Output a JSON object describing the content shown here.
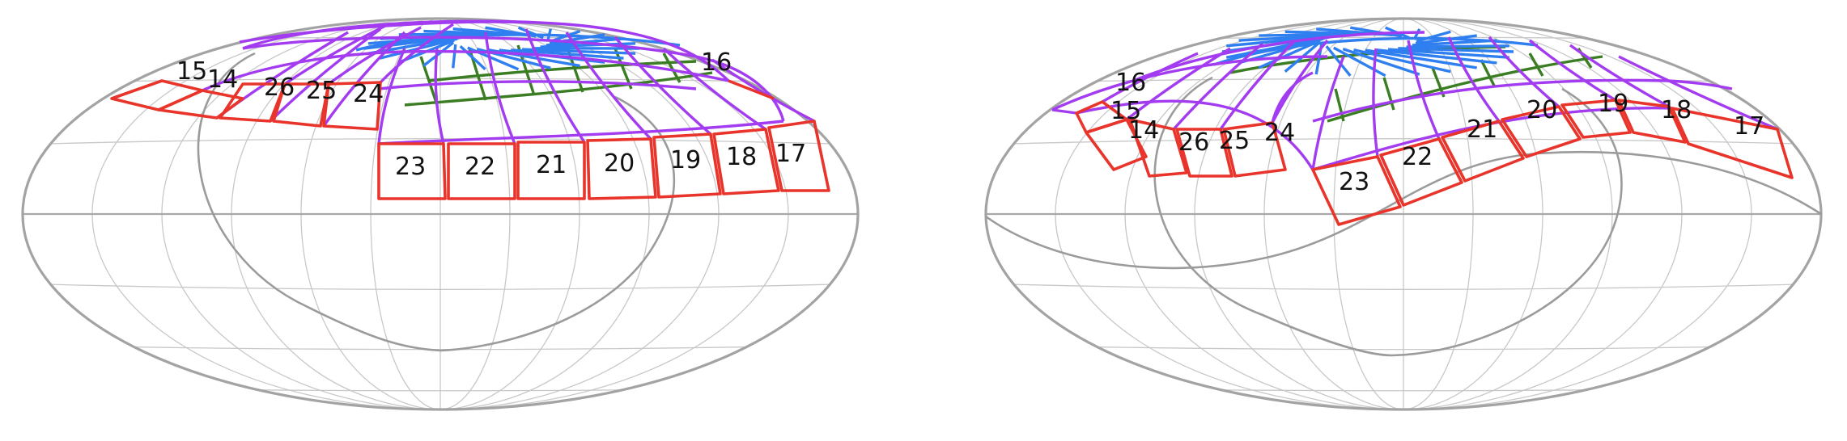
{
  "colors": {
    "red": "#e8342a",
    "purple": "#a33cf0",
    "green": "#3a7d22",
    "blue": "#2f7ff0",
    "grid": "#c8c8c8",
    "outline": "#a3a3a3"
  },
  "panels": [
    {
      "name": "left-panel",
      "labels": [
        {
          "text": "15"
        },
        {
          "text": "14"
        },
        {
          "text": "26"
        },
        {
          "text": "25"
        },
        {
          "text": "24"
        },
        {
          "text": "16"
        },
        {
          "text": "23"
        },
        {
          "text": "22"
        },
        {
          "text": "21"
        },
        {
          "text": "20"
        },
        {
          "text": "19"
        },
        {
          "text": "18"
        },
        {
          "text": "17"
        }
      ]
    },
    {
      "name": "right-panel",
      "labels": [
        {
          "text": "16"
        },
        {
          "text": "15"
        },
        {
          "text": "14"
        },
        {
          "text": "26"
        },
        {
          "text": "25"
        },
        {
          "text": "24"
        },
        {
          "text": "23"
        },
        {
          "text": "22"
        },
        {
          "text": "21"
        },
        {
          "text": "20"
        },
        {
          "text": "19"
        },
        {
          "text": "18"
        },
        {
          "text": "17"
        }
      ]
    }
  ]
}
